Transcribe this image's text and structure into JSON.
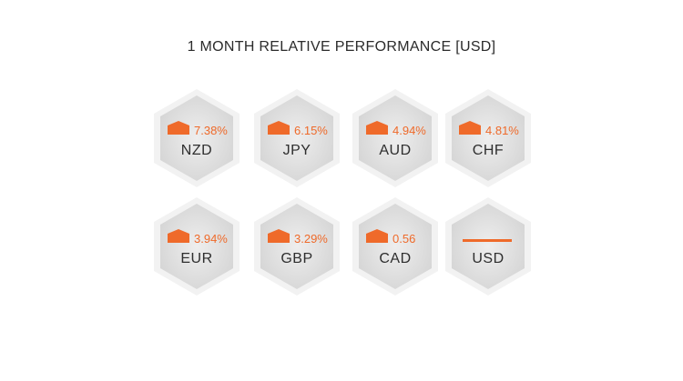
{
  "title": "1 MONTH RELATIVE PERFORMANCE  [USD]",
  "colors": {
    "accent": "#ef6a2a",
    "hex_outer": "#f0f0f0",
    "hex_inner": "#d9d9d9"
  },
  "currencies": [
    {
      "code": "NZD",
      "change": "7.38%",
      "direction": "up"
    },
    {
      "code": "JPY",
      "change": "6.15%",
      "direction": "up"
    },
    {
      "code": "AUD",
      "change": "4.94%",
      "direction": "up"
    },
    {
      "code": "CHF",
      "change": "4.81%",
      "direction": "up"
    },
    {
      "code": "EUR",
      "change": "3.94%",
      "direction": "up"
    },
    {
      "code": "GBP",
      "change": "3.29%",
      "direction": "up"
    },
    {
      "code": "CAD",
      "change": "0.56",
      "direction": "up"
    },
    {
      "code": "USD",
      "change": "",
      "direction": "flat"
    }
  ]
}
